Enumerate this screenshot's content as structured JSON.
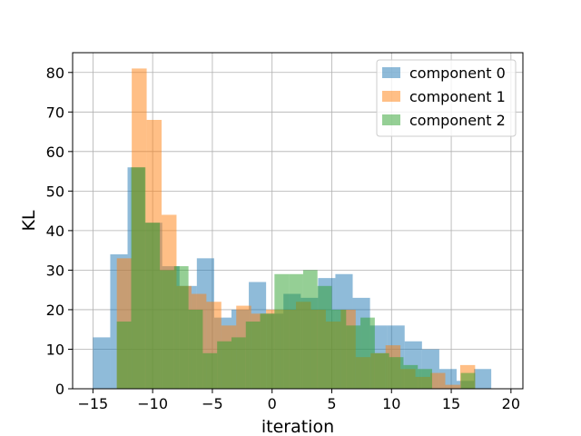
{
  "chart_data": {
    "type": "histogram",
    "title": "",
    "xlabel": "iteration",
    "ylabel": "KL",
    "xlim": [
      -16.7,
      21.0
    ],
    "ylim": [
      0,
      85
    ],
    "x_ticks": [
      -15,
      -10,
      -5,
      0,
      5,
      10,
      15,
      20
    ],
    "x_tick_labels": [
      "−15",
      "−10",
      "−5",
      "0",
      "5",
      "10",
      "15",
      "20"
    ],
    "y_ticks": [
      0,
      10,
      20,
      30,
      40,
      50,
      60,
      70,
      80
    ],
    "y_tick_labels": [
      "0",
      "10",
      "20",
      "30",
      "40",
      "50",
      "60",
      "70",
      "80"
    ],
    "grid": true,
    "legend_position": "top-right",
    "bar_alpha": 0.5,
    "series": [
      {
        "name": "component 0",
        "color": "#1f77b4",
        "bin_edges": [
          -15.0,
          -13.55,
          -12.1,
          -10.65,
          -9.2,
          -7.75,
          -6.3,
          -4.85,
          -3.4,
          -1.95,
          -0.5,
          0.95,
          2.4,
          3.85,
          5.3,
          6.75,
          8.2,
          9.65,
          11.1,
          12.55,
          14.0,
          15.45,
          16.9,
          18.35
        ],
        "counts": [
          13,
          34,
          56,
          42,
          31,
          26,
          33,
          18,
          20,
          27,
          19,
          24,
          23,
          28,
          29,
          23,
          16,
          16,
          12,
          10,
          5,
          2,
          5
        ]
      },
      {
        "name": "component 1",
        "color": "#ff7f0e",
        "bin_edges": [
          -13.0,
          -11.75,
          -10.5,
          -9.25,
          -8.0,
          -6.75,
          -5.5,
          -4.25,
          -3.0,
          -1.75,
          -0.5,
          0.75,
          2.0,
          3.25,
          4.5,
          5.75,
          7.0,
          8.25,
          9.5,
          10.75,
          12.0,
          13.25,
          14.5,
          15.75,
          17.0
        ],
        "counts": [
          33,
          81,
          68,
          44,
          26,
          24,
          22,
          16,
          21,
          19,
          20,
          20,
          22,
          20,
          17,
          20,
          8,
          9,
          11,
          5,
          3,
          4,
          1,
          6
        ]
      },
      {
        "name": "component 2",
        "color": "#2ca02c",
        "bin_edges": [
          -13.0,
          -11.8,
          -10.6,
          -9.4,
          -8.2,
          -7.0,
          -5.8,
          -4.6,
          -3.4,
          -2.2,
          -1.0,
          0.2,
          1.4,
          2.6,
          3.8,
          5.0,
          6.2,
          7.4,
          8.6,
          9.8,
          11.0,
          12.2,
          13.4,
          14.6,
          15.8,
          17.0
        ],
        "counts": [
          17,
          56,
          42,
          30,
          31,
          20,
          9,
          12,
          13,
          17,
          19,
          29,
          29,
          30,
          26,
          20,
          16,
          18,
          9,
          8,
          6,
          5,
          0,
          0,
          4
        ]
      }
    ]
  }
}
